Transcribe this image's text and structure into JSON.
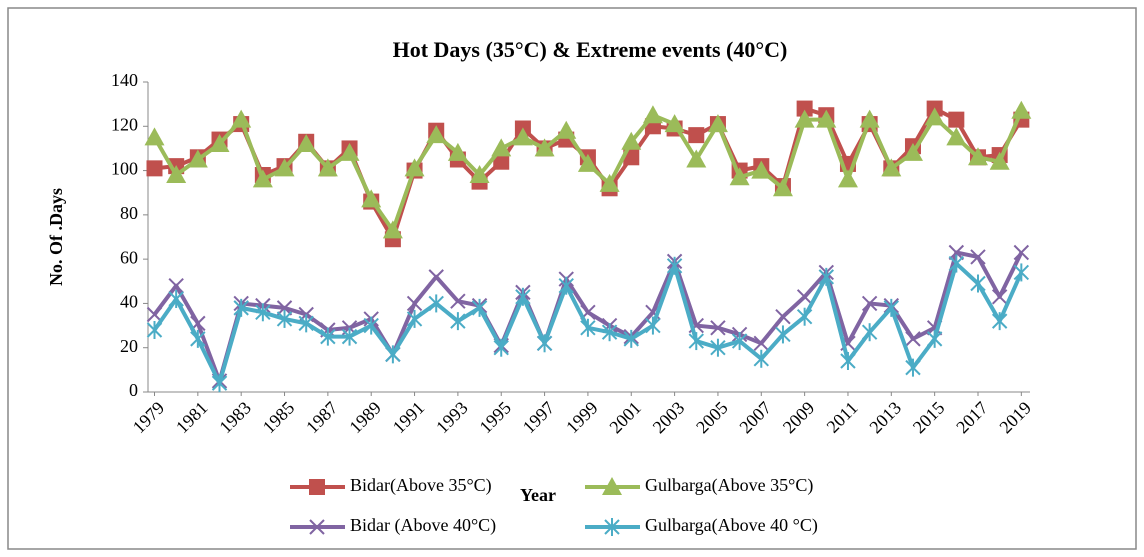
{
  "chart_data": {
    "type": "line",
    "title": "Hot Days (35°C) & Extreme events (40°C)",
    "x_label": "Year",
    "y_label": "No. Of .Days",
    "x": [
      1979,
      1980,
      1981,
      1982,
      1983,
      1984,
      1985,
      1986,
      1987,
      1988,
      1989,
      1990,
      1991,
      1992,
      1993,
      1994,
      1995,
      1996,
      1997,
      1998,
      1999,
      2000,
      2001,
      2002,
      2003,
      2004,
      2005,
      2006,
      2007,
      2008,
      2009,
      2010,
      2011,
      2012,
      2013,
      2014,
      2015,
      2016,
      2017,
      2018,
      2019
    ],
    "xlim": [
      1978.7,
      2019.4
    ],
    "xticks": [
      1979,
      1981,
      1983,
      1985,
      1987,
      1989,
      1991,
      1993,
      1995,
      1997,
      1999,
      2001,
      2003,
      2005,
      2007,
      2009,
      2011,
      2013,
      2015,
      2017,
      2019
    ],
    "ylim": [
      0,
      140
    ],
    "yticks": [
      0,
      20,
      40,
      60,
      80,
      100,
      120,
      140
    ],
    "grid": false,
    "legend": "bottom",
    "series": [
      {
        "name": "Bidar(Above 35°C)",
        "color": "#c0504d",
        "marker": "square",
        "values": [
          101,
          102,
          106,
          114,
          121,
          98,
          102,
          113,
          101,
          110,
          86,
          69,
          100,
          118,
          105,
          95,
          104,
          119,
          110,
          114,
          106,
          92,
          106,
          120,
          119,
          116,
          121,
          100,
          102,
          93,
          128,
          125,
          103,
          121,
          101,
          111,
          128,
          123,
          106,
          107,
          123
        ]
      },
      {
        "name": "Gulbarga(Above 35°C)",
        "color": "#9bbb59",
        "marker": "triangle",
        "values": [
          115,
          98,
          105,
          112,
          123,
          96,
          101,
          112,
          101,
          108,
          87,
          73,
          101,
          116,
          108,
          98,
          110,
          115,
          110,
          118,
          103,
          94,
          113,
          125,
          121,
          105,
          121,
          97,
          100,
          92,
          123,
          123,
          96,
          123,
          101,
          108,
          124,
          115,
          106,
          104,
          127
        ]
      },
      {
        "name": "Bidar (Above 40°C)",
        "color": "#8064a2",
        "marker": "x",
        "values": [
          35,
          48,
          31,
          5,
          40,
          39,
          38,
          35,
          28,
          29,
          33,
          17,
          40,
          52,
          41,
          39,
          21,
          45,
          22,
          51,
          36,
          30,
          25,
          36,
          59,
          30,
          29,
          26,
          22,
          34,
          43,
          54,
          22,
          40,
          39,
          24,
          29,
          63,
          61,
          43,
          63
        ]
      },
      {
        "name": "Gulbarga(Above 40  °C)",
        "color": "#4bacc6",
        "marker": "star",
        "values": [
          28,
          42,
          24,
          4,
          38,
          36,
          33,
          31,
          25,
          25,
          30,
          17,
          33,
          40,
          32,
          38,
          20,
          43,
          22,
          48,
          29,
          27,
          24,
          30,
          57,
          23,
          20,
          23,
          15,
          26,
          34,
          52,
          14,
          27,
          38,
          11,
          24,
          58,
          49,
          32,
          54
        ]
      }
    ]
  }
}
